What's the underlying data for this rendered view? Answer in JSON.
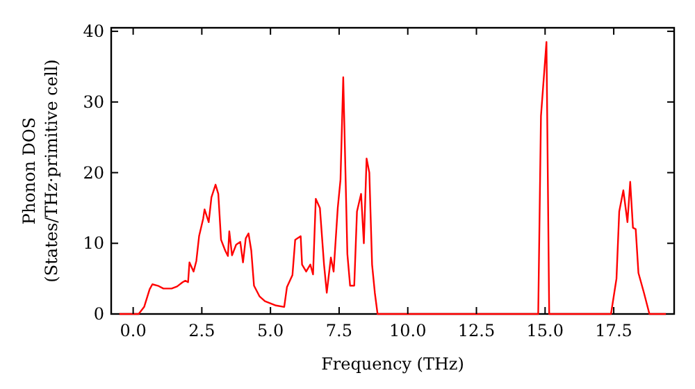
{
  "chart_data": {
    "type": "line",
    "xlabel": "Frequency (THz)",
    "ylabel": "Phonon DOS\n(States/THz·primitive cell)",
    "xlim": [
      -0.8,
      19.7
    ],
    "ylim": [
      0,
      40.5
    ],
    "xticks": [
      {
        "value": 0,
        "label": "0.0"
      },
      {
        "value": 2.5,
        "label": "2.5"
      },
      {
        "value": 5,
        "label": "5.0"
      },
      {
        "value": 7.5,
        "label": "7.5"
      },
      {
        "value": 10,
        "label": "10.0"
      },
      {
        "value": 12.5,
        "label": "12.5"
      },
      {
        "value": 15,
        "label": "15.0"
      },
      {
        "value": 17.5,
        "label": "17.5"
      }
    ],
    "yticks": [
      0,
      10,
      20,
      30,
      40
    ],
    "grid": false,
    "marker": "none",
    "line_style": "solid",
    "series": [
      {
        "color": "#ff0000",
        "x": [
          -0.5,
          0.2,
          0.4,
          0.6,
          0.7,
          0.9,
          1.1,
          1.4,
          1.6,
          1.8,
          1.9,
          2.0,
          2.05,
          2.2,
          2.3,
          2.4,
          2.55,
          2.6,
          2.75,
          2.85,
          3.0,
          3.1,
          3.2,
          3.35,
          3.45,
          3.5,
          3.6,
          3.75,
          3.9,
          4.0,
          4.1,
          4.2,
          4.3,
          4.4,
          4.6,
          4.8,
          5.2,
          5.5,
          5.6,
          5.8,
          5.9,
          6.1,
          6.15,
          6.3,
          6.45,
          6.55,
          6.65,
          6.8,
          6.95,
          7.05,
          7.2,
          7.3,
          7.45,
          7.55,
          7.65,
          7.8,
          7.9,
          8.05,
          8.15,
          8.3,
          8.4,
          8.5,
          8.6,
          8.7,
          8.8,
          8.9,
          14.75,
          14.85,
          15.05,
          15.15,
          17.4,
          17.6,
          17.7,
          17.85,
          18.0,
          18.1,
          18.2,
          18.3,
          18.4,
          18.6,
          18.8,
          19.4
        ],
        "values": [
          0,
          0,
          1,
          3.5,
          4.2,
          4,
          3.6,
          3.6,
          3.9,
          4.5,
          4.7,
          4.5,
          7.3,
          6,
          7.5,
          11,
          13.5,
          14.8,
          13,
          16.5,
          18.3,
          17,
          10.5,
          9,
          8.2,
          11.7,
          8.3,
          9.8,
          10.2,
          7.3,
          10.7,
          11.4,
          9,
          4,
          2.5,
          1.8,
          1.2,
          1,
          3.8,
          5.5,
          10.5,
          11,
          7,
          6,
          7,
          5.6,
          16.3,
          15,
          7,
          3,
          8,
          6,
          15,
          19,
          33.5,
          8.5,
          4,
          4,
          14.5,
          17,
          10,
          22,
          20,
          7,
          3,
          0,
          0,
          28,
          38.5,
          0,
          0,
          5,
          14.5,
          17.5,
          13,
          18.7,
          12.2,
          12,
          5.8,
          3,
          0,
          0
        ]
      }
    ]
  }
}
